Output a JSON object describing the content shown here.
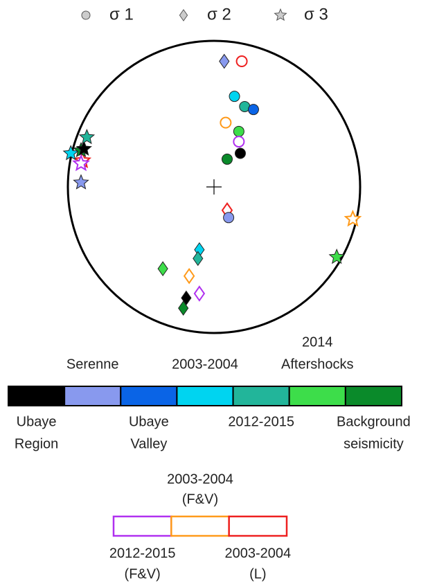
{
  "chart_data": {
    "type": "stereonet",
    "xlim": [
      -1,
      1
    ],
    "ylim": [
      -1,
      1
    ],
    "symbols": [
      {
        "marker": "circle",
        "label": "σ 1"
      },
      {
        "marker": "diamond",
        "label": "σ 2"
      },
      {
        "marker": "star",
        "label": "σ 3"
      }
    ],
    "points": [
      {
        "marker": "circle",
        "color": "#ee2020",
        "open": true,
        "x": 0.19,
        "y": 0.86
      },
      {
        "marker": "circle",
        "color": "#00d4f0",
        "open": false,
        "x": 0.14,
        "y": 0.62
      },
      {
        "marker": "circle",
        "color": "#22b59a",
        "open": false,
        "x": 0.21,
        "y": 0.55
      },
      {
        "marker": "circle",
        "color": "#0a64e6",
        "open": false,
        "x": 0.27,
        "y": 0.53
      },
      {
        "marker": "circle",
        "color": "#ff9a1a",
        "open": true,
        "x": 0.08,
        "y": 0.44
      },
      {
        "marker": "circle",
        "color": "#3ddd4a",
        "open": false,
        "x": 0.17,
        "y": 0.38
      },
      {
        "marker": "circle",
        "color": "#b030f0",
        "open": true,
        "x": 0.17,
        "y": 0.31
      },
      {
        "marker": "circle",
        "color": "#000000",
        "open": false,
        "x": 0.18,
        "y": 0.23
      },
      {
        "marker": "circle",
        "color": "#0a8a2a",
        "open": false,
        "x": 0.09,
        "y": 0.19
      },
      {
        "marker": "diamond",
        "color": "#ee2020",
        "open": true,
        "x": 0.09,
        "y": -0.16
      },
      {
        "marker": "circle",
        "color": "#8899ee",
        "open": false,
        "x": 0.1,
        "y": -0.21
      },
      {
        "marker": "diamond",
        "color": "#8899ee",
        "open": false,
        "x": 0.07,
        "y": 0.86
      },
      {
        "marker": "diamond",
        "color": "#00d4f0",
        "open": false,
        "x": -0.1,
        "y": -0.43
      },
      {
        "marker": "diamond",
        "color": "#22b59a",
        "open": false,
        "x": -0.11,
        "y": -0.49
      },
      {
        "marker": "diamond",
        "color": "#3ddd4a",
        "open": false,
        "x": -0.35,
        "y": -0.56
      },
      {
        "marker": "diamond",
        "color": "#ff9a1a",
        "open": true,
        "x": -0.17,
        "y": -0.61
      },
      {
        "marker": "diamond",
        "color": "#b030f0",
        "open": true,
        "x": -0.1,
        "y": -0.73
      },
      {
        "marker": "diamond",
        "color": "#000000",
        "open": false,
        "x": -0.19,
        "y": -0.76
      },
      {
        "marker": "diamond",
        "color": "#0a8a2a",
        "open": false,
        "x": -0.21,
        "y": -0.83
      },
      {
        "marker": "star",
        "color": "#8899ee",
        "open": false,
        "x": -0.91,
        "y": 0.03
      },
      {
        "marker": "star",
        "color": "#ee2020",
        "open": true,
        "x": -0.9,
        "y": 0.18
      },
      {
        "marker": "star",
        "color": "#b030f0",
        "open": true,
        "x": -0.91,
        "y": 0.16
      },
      {
        "marker": "star",
        "color": "#00d4f0",
        "open": false,
        "x": -0.98,
        "y": 0.23
      },
      {
        "marker": "star",
        "color": "#0a8a2a",
        "open": false,
        "x": -0.91,
        "y": 0.25
      },
      {
        "marker": "star",
        "color": "#000000",
        "open": false,
        "x": -0.89,
        "y": 0.26
      },
      {
        "marker": "star",
        "color": "#22b59a",
        "open": false,
        "x": -0.87,
        "y": 0.34
      },
      {
        "marker": "star",
        "color": "#ff9a1a",
        "open": true,
        "x": 0.95,
        "y": -0.22
      },
      {
        "marker": "star",
        "color": "#3ddd4a",
        "open": false,
        "x": 0.84,
        "y": -0.48
      }
    ],
    "colorbar": [
      {
        "color": "#000000",
        "label": [
          "Ubaye",
          "Region"
        ]
      },
      {
        "color": "#8899ee",
        "label": [
          "Serenne"
        ]
      },
      {
        "color": "#0a64e6",
        "label": [
          "Ubaye",
          "Valley"
        ]
      },
      {
        "color": "#00d4f0",
        "label": [
          "2003-2004"
        ]
      },
      {
        "color": "#22b59a",
        "label": [
          "2012-2015"
        ]
      },
      {
        "color": "#3ddd4a",
        "label": [
          "2014",
          "Aftershocks"
        ]
      },
      {
        "color": "#0a8a2a",
        "label": [
          "Background",
          "seismicity"
        ]
      }
    ],
    "open_bar": [
      {
        "color": "#b030f0",
        "label": [
          "2012-2015",
          "(F&V)"
        ]
      },
      {
        "color": "#ff9a1a",
        "label": [
          "2003-2004",
          "(F&V)"
        ]
      },
      {
        "color": "#ee2020",
        "label": [
          "2003-2004",
          "(L)"
        ]
      }
    ]
  }
}
